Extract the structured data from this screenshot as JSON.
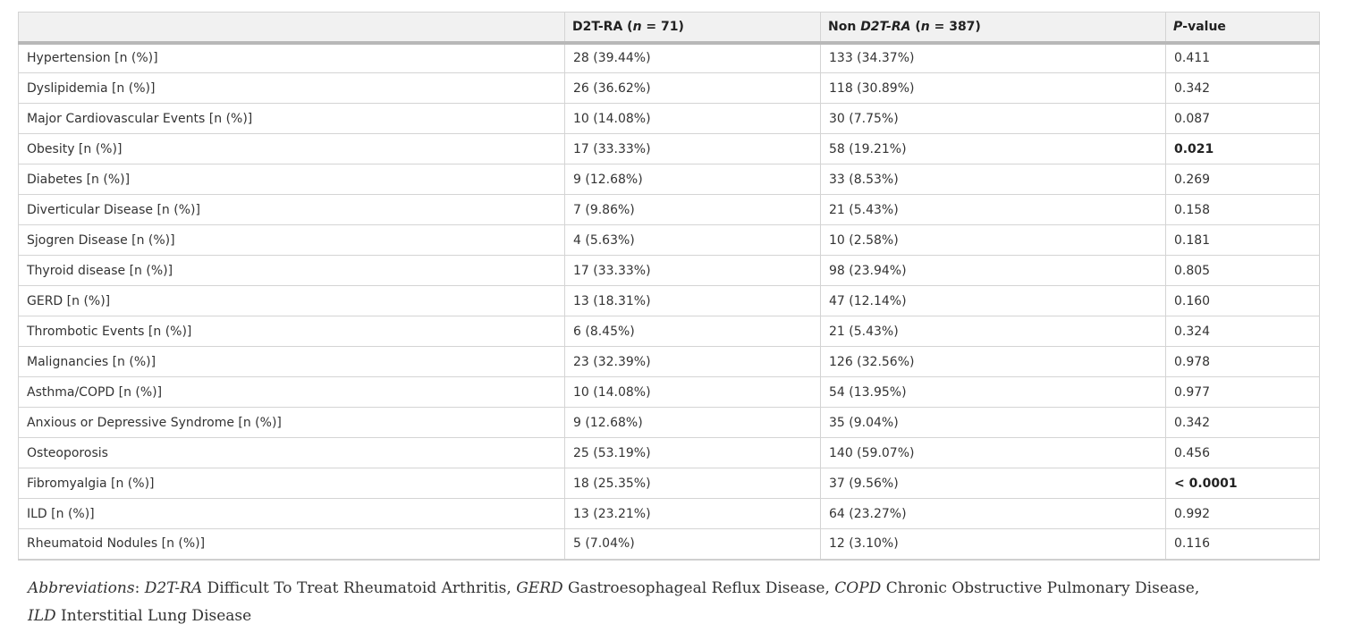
{
  "table": {
    "headers": {
      "col0": "",
      "d2t_bold": "D2T-RA (",
      "d2t_n": "n",
      "d2t_rest": " = 71)",
      "non_bold": "Non ",
      "non_d2t": "D2T-RA",
      "non_paren": " (",
      "non_n": "n",
      "non_rest": " = 387)",
      "p_letter": "P",
      "p_rest": "-value"
    },
    "rows": [
      {
        "label": "Hypertension [n (%)]",
        "d2t": "28 (39.44%)",
        "non": "133 (34.37%)",
        "p": "0.411",
        "bold": false
      },
      {
        "label": "Dyslipidemia [n (%)]",
        "d2t": "26 (36.62%)",
        "non": "118 (30.89%)",
        "p": "0.342",
        "bold": false
      },
      {
        "label": "Major Cardiovascular Events [n (%)]",
        "d2t": "10 (14.08%)",
        "non": "30 (7.75%)",
        "p": "0.087",
        "bold": false
      },
      {
        "label": "Obesity [n (%)]",
        "d2t": "17 (33.33%)",
        "non": "58 (19.21%)",
        "p": "0.021",
        "bold": true
      },
      {
        "label": "Diabetes [n (%)]",
        "d2t": "9 (12.68%)",
        "non": "33 (8.53%)",
        "p": "0.269",
        "bold": false
      },
      {
        "label": "Diverticular Disease [n (%)]",
        "d2t": "7 (9.86%)",
        "non": "21 (5.43%)",
        "p": "0.158",
        "bold": false
      },
      {
        "label": "Sjogren Disease [n (%)]",
        "d2t": "4 (5.63%)",
        "non": "10 (2.58%)",
        "p": "0.181",
        "bold": false
      },
      {
        "label": "Thyroid disease [n (%)]",
        "d2t": "17 (33.33%)",
        "non": "98 (23.94%)",
        "p": "0.805",
        "bold": false
      },
      {
        "label": "GERD [n (%)]",
        "d2t": "13 (18.31%)",
        "non": "47 (12.14%)",
        "p": "0.160",
        "bold": false
      },
      {
        "label": "Thrombotic Events [n (%)]",
        "d2t": "6 (8.45%)",
        "non": "21 (5.43%)",
        "p": "0.324",
        "bold": false
      },
      {
        "label": "Malignancies [n (%)]",
        "d2t": "23 (32.39%)",
        "non": "126 (32.56%)",
        "p": "0.978",
        "bold": false
      },
      {
        "label": "Asthma/COPD [n (%)]",
        "d2t": "10 (14.08%)",
        "non": "54 (13.95%)",
        "p": "0.977",
        "bold": false
      },
      {
        "label": "Anxious or Depressive Syndrome [n (%)]",
        "d2t": "9 (12.68%)",
        "non": "35 (9.04%)",
        "p": "0.342",
        "bold": false
      },
      {
        "label": "Osteoporosis",
        "d2t": "25 (53.19%)",
        "non": "140 (59.07%)",
        "p": "0.456",
        "bold": false
      },
      {
        "label": "Fibromyalgia [n (%)]",
        "d2t": "18 (25.35%)",
        "non": "37 (9.56%)",
        "p": "< 0.0001",
        "bold": true
      },
      {
        "label": "ILD [n (%)]",
        "d2t": "13 (23.21%)",
        "non": "64 (23.27%)",
        "p": "0.992",
        "bold": false
      },
      {
        "label": "Rheumatoid Nodules [n (%)]",
        "d2t": "5 (7.04%)",
        "non": "12 (3.10%)",
        "p": "0.116",
        "bold": false
      }
    ]
  },
  "footnote": {
    "lead": "Abbreviations",
    "colon": ": ",
    "abbr1": "D2T-RA",
    "def1": " Difficult To Treat Rheumatoid Arthritis, ",
    "abbr2": "GERD",
    "def2": " Gastroesophageal Reflux Disease, ",
    "abbr3": "COPD",
    "def3": " Chronic Obstructive Pulmonary Disease,",
    "abbr4": "ILD",
    "def4": " Interstitial Lung Disease"
  }
}
